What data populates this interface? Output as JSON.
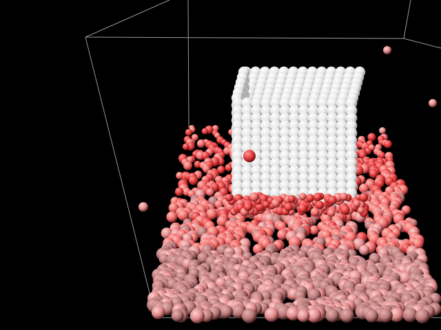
{
  "scene": {
    "background_color": "#000000",
    "box_edge_color": "#9a9a9a",
    "solid_block": {
      "particle_color": "#f2f2f2",
      "embedded_particle_color": "#e23a3a"
    },
    "fluid": {
      "particle_colors": [
        "#ff4d4d",
        "#ef5e5e",
        "#e88080",
        "#d89090",
        "#c98a8a",
        "#f06060",
        "#ffa0a0"
      ],
      "shadow_color": "#3a1414"
    },
    "stray_particle_color": "#d98585"
  }
}
